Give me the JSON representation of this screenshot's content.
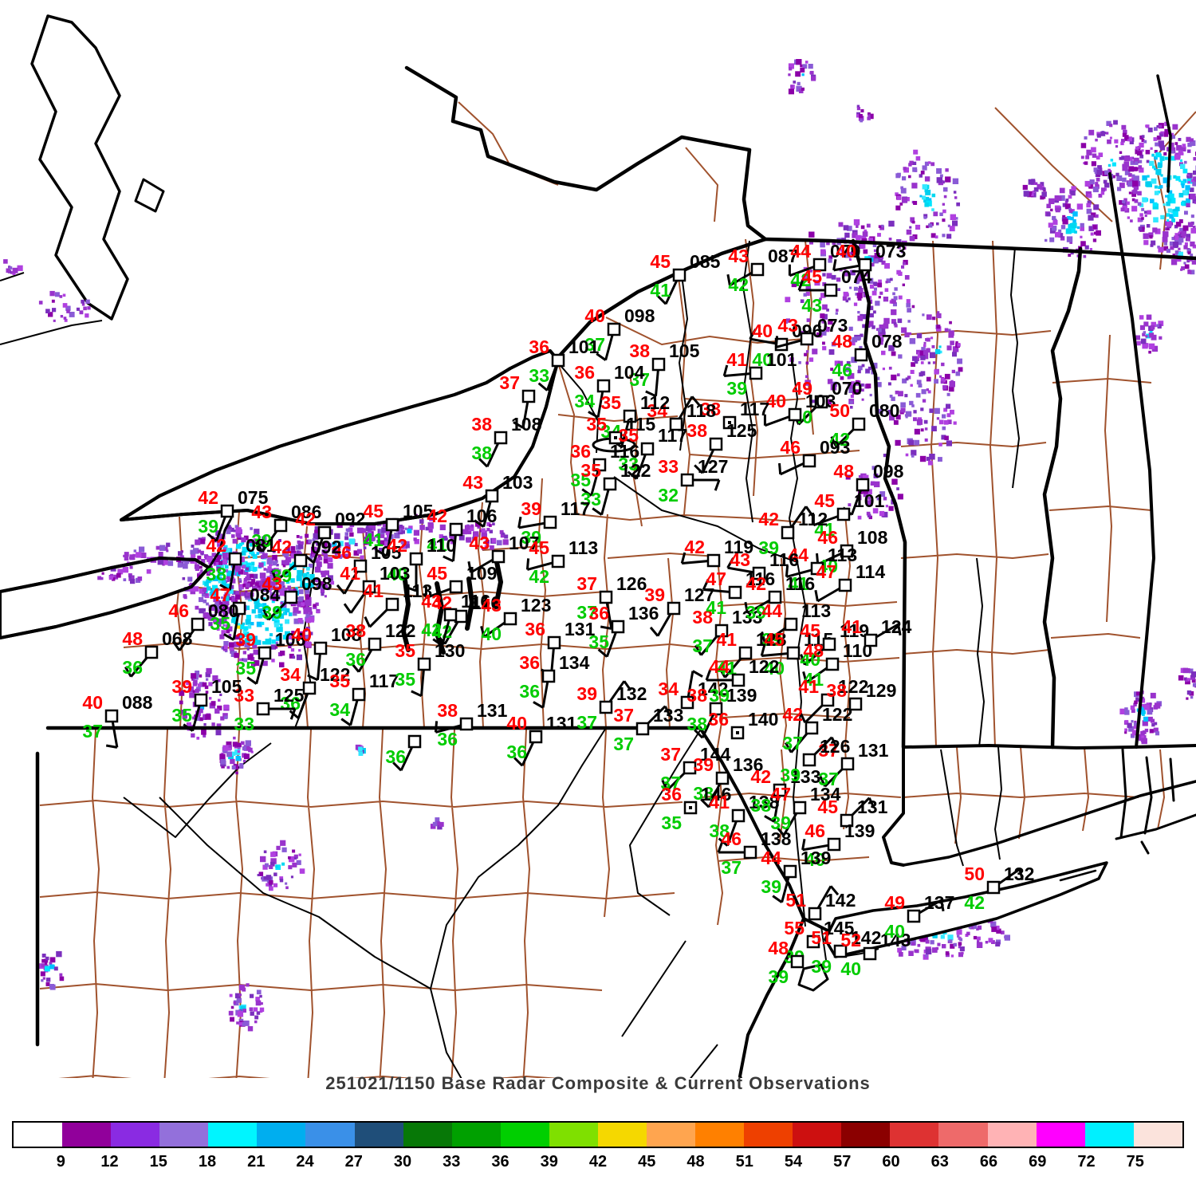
{
  "title": "251021/1150 Base Radar Composite & Current Observations",
  "colors": {
    "temp": "#ff0000",
    "dewpoint": "#00cc00",
    "pressure": "#000000",
    "county": "#A0522D",
    "border": "#000000"
  },
  "colorbar": {
    "labels": [
      "9",
      "12",
      "15",
      "18",
      "21",
      "24",
      "27",
      "30",
      "33",
      "36",
      "39",
      "42",
      "45",
      "48",
      "51",
      "54",
      "57",
      "60",
      "63",
      "66",
      "69",
      "72",
      "75"
    ],
    "segments": [
      "#FFFFFF",
      "#91009B",
      "#8A2BE2",
      "#9370DB",
      "#00F5FF",
      "#00AEEF",
      "#3A90E8",
      "#1F4E79",
      "#077807",
      "#00A000",
      "#00CF00",
      "#7FE000",
      "#F5D800",
      "#FFA54F",
      "#FF8000",
      "#EE4000",
      "#CD1010",
      "#8B0000",
      "#DE3232",
      "#EE6A6A",
      "#FFB3B5",
      "#FF00FF",
      "#00F0FF",
      "#FBE3DC"
    ]
  },
  "stations": [
    [
      852,
      345,
      "45",
      "41",
      "085",
      205,
      0
    ],
    [
      950,
      338,
      "43",
      "42",
      "087",
      240,
      0
    ],
    [
      1028,
      332,
      "44",
      "42",
      "079",
      250,
      0
    ],
    [
      1085,
      332,
      "40",
      null,
      "073",
      260,
      0
    ],
    [
      1042,
      364,
      "45",
      "43",
      "074",
      270,
      0
    ],
    [
      770,
      413,
      "40",
      "37",
      "098",
      195,
      0
    ],
    [
      826,
      457,
      "38",
      "37",
      "105",
      185,
      0
    ],
    [
      700,
      452,
      "36",
      "33",
      "101",
      200,
      0
    ],
    [
      663,
      497,
      "37",
      null,
      null,
      190,
      0
    ],
    [
      757,
      484,
      "36",
      "34",
      "104",
      190,
      0
    ],
    [
      980,
      432,
      "40",
      "40",
      "096",
      280,
      0
    ],
    [
      1012,
      425,
      "43",
      null,
      "073",
      255,
      0
    ],
    [
      948,
      468,
      "41",
      "39",
      "101",
      265,
      0
    ],
    [
      1080,
      445,
      "48",
      "46",
      "078",
      null,
      0
    ],
    [
      1030,
      504,
      "49",
      "40",
      "070",
      225,
      0
    ],
    [
      997,
      520,
      "40",
      null,
      "103",
      250,
      0
    ],
    [
      1077,
      532,
      "50",
      "42",
      "080",
      225,
      0
    ],
    [
      1015,
      578,
      "46",
      null,
      "093",
      245,
      0
    ],
    [
      1082,
      608,
      "48",
      null,
      "098",
      200,
      0
    ],
    [
      915,
      530,
      "38",
      null,
      "117",
      null,
      1
    ],
    [
      898,
      557,
      "38",
      null,
      "125",
      205,
      0
    ],
    [
      848,
      532,
      "34",
      null,
      "118",
      30,
      0
    ],
    [
      790,
      522,
      "35",
      "34",
      "112",
      195,
      0
    ],
    [
      772,
      549,
      "35",
      null,
      "115",
      null,
      1
    ],
    [
      812,
      563,
      "35",
      "33",
      "117",
      200,
      0
    ],
    [
      862,
      602,
      "33",
      "32",
      "127",
      90,
      0
    ],
    [
      752,
      583,
      "36",
      "35",
      "116",
      195,
      0
    ],
    [
      765,
      607,
      "35",
      "33",
      "122",
      195,
      0
    ],
    [
      628,
      549,
      "38",
      "38",
      "108",
      205,
      0
    ],
    [
      690,
      655,
      "39",
      "39",
      "117",
      260,
      0
    ],
    [
      492,
      658,
      "45",
      "41",
      "105",
      190,
      0
    ],
    [
      572,
      664,
      "42",
      "41",
      "106",
      185,
      0
    ],
    [
      617,
      622,
      "43",
      null,
      "103",
      195,
      0
    ],
    [
      452,
      710,
      "36",
      null,
      "105",
      210,
      0
    ],
    [
      522,
      701,
      "42",
      "40",
      "110",
      180,
      0
    ],
    [
      463,
      736,
      "41",
      null,
      "103",
      215,
      0
    ],
    [
      492,
      758,
      "41",
      null,
      "113",
      225,
      0
    ],
    [
      572,
      736,
      "45",
      null,
      "109",
      250,
      0
    ],
    [
      625,
      698,
      "43",
      null,
      "107",
      240,
      0
    ],
    [
      578,
      773,
      "42",
      "42",
      "116",
      210,
      0
    ],
    [
      700,
      704,
      "45",
      "42",
      "113",
      255,
      0
    ],
    [
      285,
      641,
      "42",
      "39",
      "075",
      200,
      0
    ],
    [
      352,
      659,
      "43",
      "39",
      "086",
      215,
      0
    ],
    [
      407,
      668,
      "42",
      null,
      "092",
      200,
      0
    ],
    [
      295,
      701,
      "42",
      "38",
      "081",
      190,
      0
    ],
    [
      377,
      703,
      "42",
      "39",
      "092",
      230,
      0
    ],
    [
      300,
      763,
      "47",
      "35",
      "084",
      190,
      0
    ],
    [
      365,
      749,
      "43",
      "39",
      "098",
      225,
      0
    ],
    [
      248,
      783,
      "46",
      null,
      "080",
      215,
      0
    ],
    [
      190,
      818,
      "48",
      "36",
      "068",
      220,
      0
    ],
    [
      332,
      819,
      "39",
      "35",
      "106",
      195,
      0
    ],
    [
      402,
      813,
      "40",
      null,
      "108",
      185,
      0
    ],
    [
      470,
      808,
      "38",
      "36",
      "122",
      210,
      0
    ],
    [
      388,
      863,
      "34",
      "36",
      "122",
      200,
      0
    ],
    [
      450,
      871,
      "35",
      "34",
      "117",
      195,
      0
    ],
    [
      330,
      889,
      "33",
      "33",
      "125",
      90,
      0
    ],
    [
      252,
      878,
      "39",
      "35",
      "105",
      195,
      0
    ],
    [
      140,
      898,
      "40",
      "37",
      "088",
      170,
      0
    ],
    [
      532,
      833,
      "35",
      "35",
      "130",
      185,
      0
    ],
    [
      585,
      908,
      "38",
      "36",
      "131",
      255,
      0
    ],
    [
      672,
      924,
      "40",
      "36",
      "131",
      205,
      0
    ],
    [
      520,
      930,
      null,
      "36",
      null,
      205,
      0
    ],
    [
      565,
      771,
      "43",
      "42",
      "116",
      195,
      0
    ],
    [
      640,
      776,
      "43",
      "40",
      "123",
      235,
      0
    ],
    [
      695,
      806,
      "36",
      null,
      "131",
      185,
      0
    ],
    [
      688,
      848,
      "36",
      "36",
      "134",
      190,
      0
    ],
    [
      760,
      749,
      "37",
      "37",
      "126",
      170,
      0
    ],
    [
      845,
      763,
      "39",
      null,
      "127",
      210,
      0
    ],
    [
      775,
      786,
      "36",
      "35",
      "136",
      200,
      0
    ],
    [
      905,
      791,
      "38",
      "37",
      "133",
      220,
      0
    ],
    [
      760,
      887,
      "39",
      "37",
      "132",
      35,
      0
    ],
    [
      806,
      914,
      "37",
      "37",
      "133",
      45,
      0
    ],
    [
      862,
      881,
      "34",
      null,
      "142",
      10,
      0
    ],
    [
      898,
      889,
      "38",
      "38",
      "139",
      205,
      0
    ],
    [
      865,
      963,
      "37",
      "37",
      "144",
      225,
      0
    ],
    [
      906,
      976,
      "39",
      "38",
      "136",
      205,
      0
    ],
    [
      925,
      919,
      "36",
      null,
      "140",
      null,
      1
    ],
    [
      866,
      1013,
      "36",
      "35",
      "146",
      null,
      1
    ],
    [
      926,
      1023,
      "41",
      "38",
      "138",
      200,
      0
    ],
    [
      978,
      991,
      "42",
      "38",
      "133",
      190,
      0
    ],
    [
      1003,
      1013,
      "47",
      "39",
      "134",
      210,
      0
    ],
    [
      1062,
      1029,
      "45",
      null,
      "131",
      45,
      0
    ],
    [
      1063,
      958,
      "37",
      "37",
      "131",
      225,
      0
    ],
    [
      941,
      1069,
      "46",
      "37",
      "138",
      270,
      0
    ],
    [
      1046,
      1059,
      "46",
      "40",
      "139",
      260,
      0
    ],
    [
      991,
      1093,
      "44",
      "39",
      "139",
      195,
      0
    ],
    [
      1058,
      645,
      "45",
      "41",
      "101",
      250,
      0
    ],
    [
      988,
      668,
      "42",
      "39",
      "112",
      35,
      0
    ],
    [
      1062,
      691,
      "46",
      "40",
      "108",
      245,
      0
    ],
    [
      1025,
      713,
      "44",
      "41",
      "113",
      255,
      0
    ],
    [
      1060,
      734,
      "47",
      null,
      "114",
      240,
      0
    ],
    [
      952,
      719,
      "43",
      null,
      "116",
      280,
      0
    ],
    [
      895,
      703,
      "42",
      null,
      "119",
      265,
      0
    ],
    [
      922,
      743,
      "47",
      "41",
      "116",
      275,
      0
    ],
    [
      972,
      749,
      "42",
      "39",
      "116",
      240,
      0
    ],
    [
      992,
      783,
      "44",
      "39",
      "113",
      235,
      0
    ],
    [
      935,
      819,
      "41",
      "41",
      "128",
      220,
      0
    ],
    [
      995,
      819,
      "45",
      "40",
      "115",
      265,
      0
    ],
    [
      1040,
      808,
      "45",
      "40",
      "119",
      230,
      0
    ],
    [
      1044,
      833,
      "48",
      "41",
      "110",
      235,
      0
    ],
    [
      1092,
      803,
      "41",
      null,
      "124",
      60,
      0
    ],
    [
      926,
      853,
      "44",
      "39",
      "122",
      270,
      0
    ],
    [
      1038,
      878,
      "41",
      null,
      "122",
      225,
      0
    ],
    [
      1073,
      883,
      "38",
      null,
      "129",
      null,
      0
    ],
    [
      1018,
      913,
      "42",
      "37",
      "122",
      220,
      0
    ],
    [
      1015,
      953,
      null,
      "39",
      "126",
      45,
      0
    ],
    [
      1022,
      1146,
      "51",
      null,
      "142",
      30,
      0
    ],
    [
      1020,
      1181,
      "55",
      "39",
      "145",
      null,
      0
    ],
    [
      1054,
      1193,
      "51",
      "39",
      "142",
      null,
      0
    ],
    [
      1091,
      1196,
      "52",
      "40",
      "143",
      null,
      0
    ],
    [
      1000,
      1206,
      "48",
      "39",
      null,
      null,
      0
    ],
    [
      1146,
      1149,
      "49",
      "40",
      "137",
      60,
      0
    ],
    [
      1246,
      1113,
      "50",
      "42",
      "132",
      55,
      0
    ]
  ],
  "radar": {
    "fringe": [
      "#8B00A8",
      "#9933CC",
      "#9933CC",
      "#8A5BD6",
      "#B040E0",
      "#7B2FBE"
    ],
    "core": [
      "#00E5FF",
      "#00CFEF",
      "#33E8FF",
      "#00BFFF",
      "#00D8F0"
    ],
    "accent": [
      "#ADFF2F",
      "#FFE400",
      "#00C000",
      "#FF8000"
    ],
    "blobs": [
      [
        300,
        700,
        62,
        40,
        170,
        0.5,
        1
      ],
      [
        330,
        780,
        72,
        56,
        230,
        0.55,
        1
      ],
      [
        275,
        735,
        46,
        46,
        130,
        0.4,
        1
      ],
      [
        375,
        725,
        46,
        40,
        120,
        0.45,
        0
      ],
      [
        430,
        680,
        60,
        22,
        80,
        0.2,
        0
      ],
      [
        520,
        668,
        70,
        20,
        70,
        0.1,
        0
      ],
      [
        600,
        672,
        40,
        16,
        40,
        0.1,
        0
      ],
      [
        255,
        885,
        28,
        45,
        70,
        0.15,
        0
      ],
      [
        295,
        945,
        20,
        25,
        45,
        0.25,
        1
      ],
      [
        195,
        700,
        40,
        18,
        35,
        0,
        0
      ],
      [
        150,
        725,
        25,
        12,
        20,
        0,
        0
      ],
      [
        1055,
        395,
        70,
        120,
        150,
        0.1,
        0
      ],
      [
        1090,
        330,
        50,
        60,
        80,
        0.2,
        0
      ],
      [
        1165,
        250,
        45,
        60,
        90,
        0.3,
        0
      ],
      [
        1120,
        450,
        60,
        80,
        90,
        0.08,
        0
      ],
      [
        1160,
        520,
        40,
        60,
        60,
        0.1,
        0
      ],
      [
        1095,
        610,
        35,
        45,
        40,
        0.05,
        0
      ],
      [
        1180,
        440,
        30,
        50,
        50,
        0.25,
        0
      ],
      [
        1460,
        235,
        55,
        80,
        280,
        0.55,
        0
      ],
      [
        1395,
        200,
        40,
        50,
        90,
        0.2,
        0
      ],
      [
        1345,
        280,
        35,
        45,
        90,
        0.3,
        0
      ],
      [
        1300,
        240,
        14,
        14,
        22,
        0.2,
        0
      ],
      [
        1440,
        420,
        18,
        25,
        28,
        0.15,
        0
      ],
      [
        1485,
        320,
        20,
        30,
        40,
        0.2,
        0
      ],
      [
        1005,
        95,
        18,
        22,
        25,
        0.15,
        0
      ],
      [
        1082,
        140,
        12,
        12,
        12,
        0,
        0
      ],
      [
        80,
        385,
        30,
        18,
        25,
        0,
        0
      ],
      [
        15,
        338,
        12,
        8,
        10,
        0,
        0
      ],
      [
        65,
        1215,
        15,
        25,
        28,
        0.25,
        0
      ],
      [
        310,
        1262,
        22,
        28,
        40,
        0.3,
        0
      ],
      [
        352,
        1088,
        28,
        30,
        45,
        0.25,
        0
      ],
      [
        452,
        941,
        6,
        6,
        8,
        0.3,
        0
      ],
      [
        548,
        1035,
        6,
        6,
        6,
        0,
        0
      ],
      [
        1180,
        1170,
        85,
        30,
        150,
        0.3,
        0
      ],
      [
        1432,
        898,
        25,
        35,
        70,
        0.3,
        0
      ],
      [
        1492,
        855,
        10,
        20,
        20,
        0,
        0
      ]
    ]
  }
}
